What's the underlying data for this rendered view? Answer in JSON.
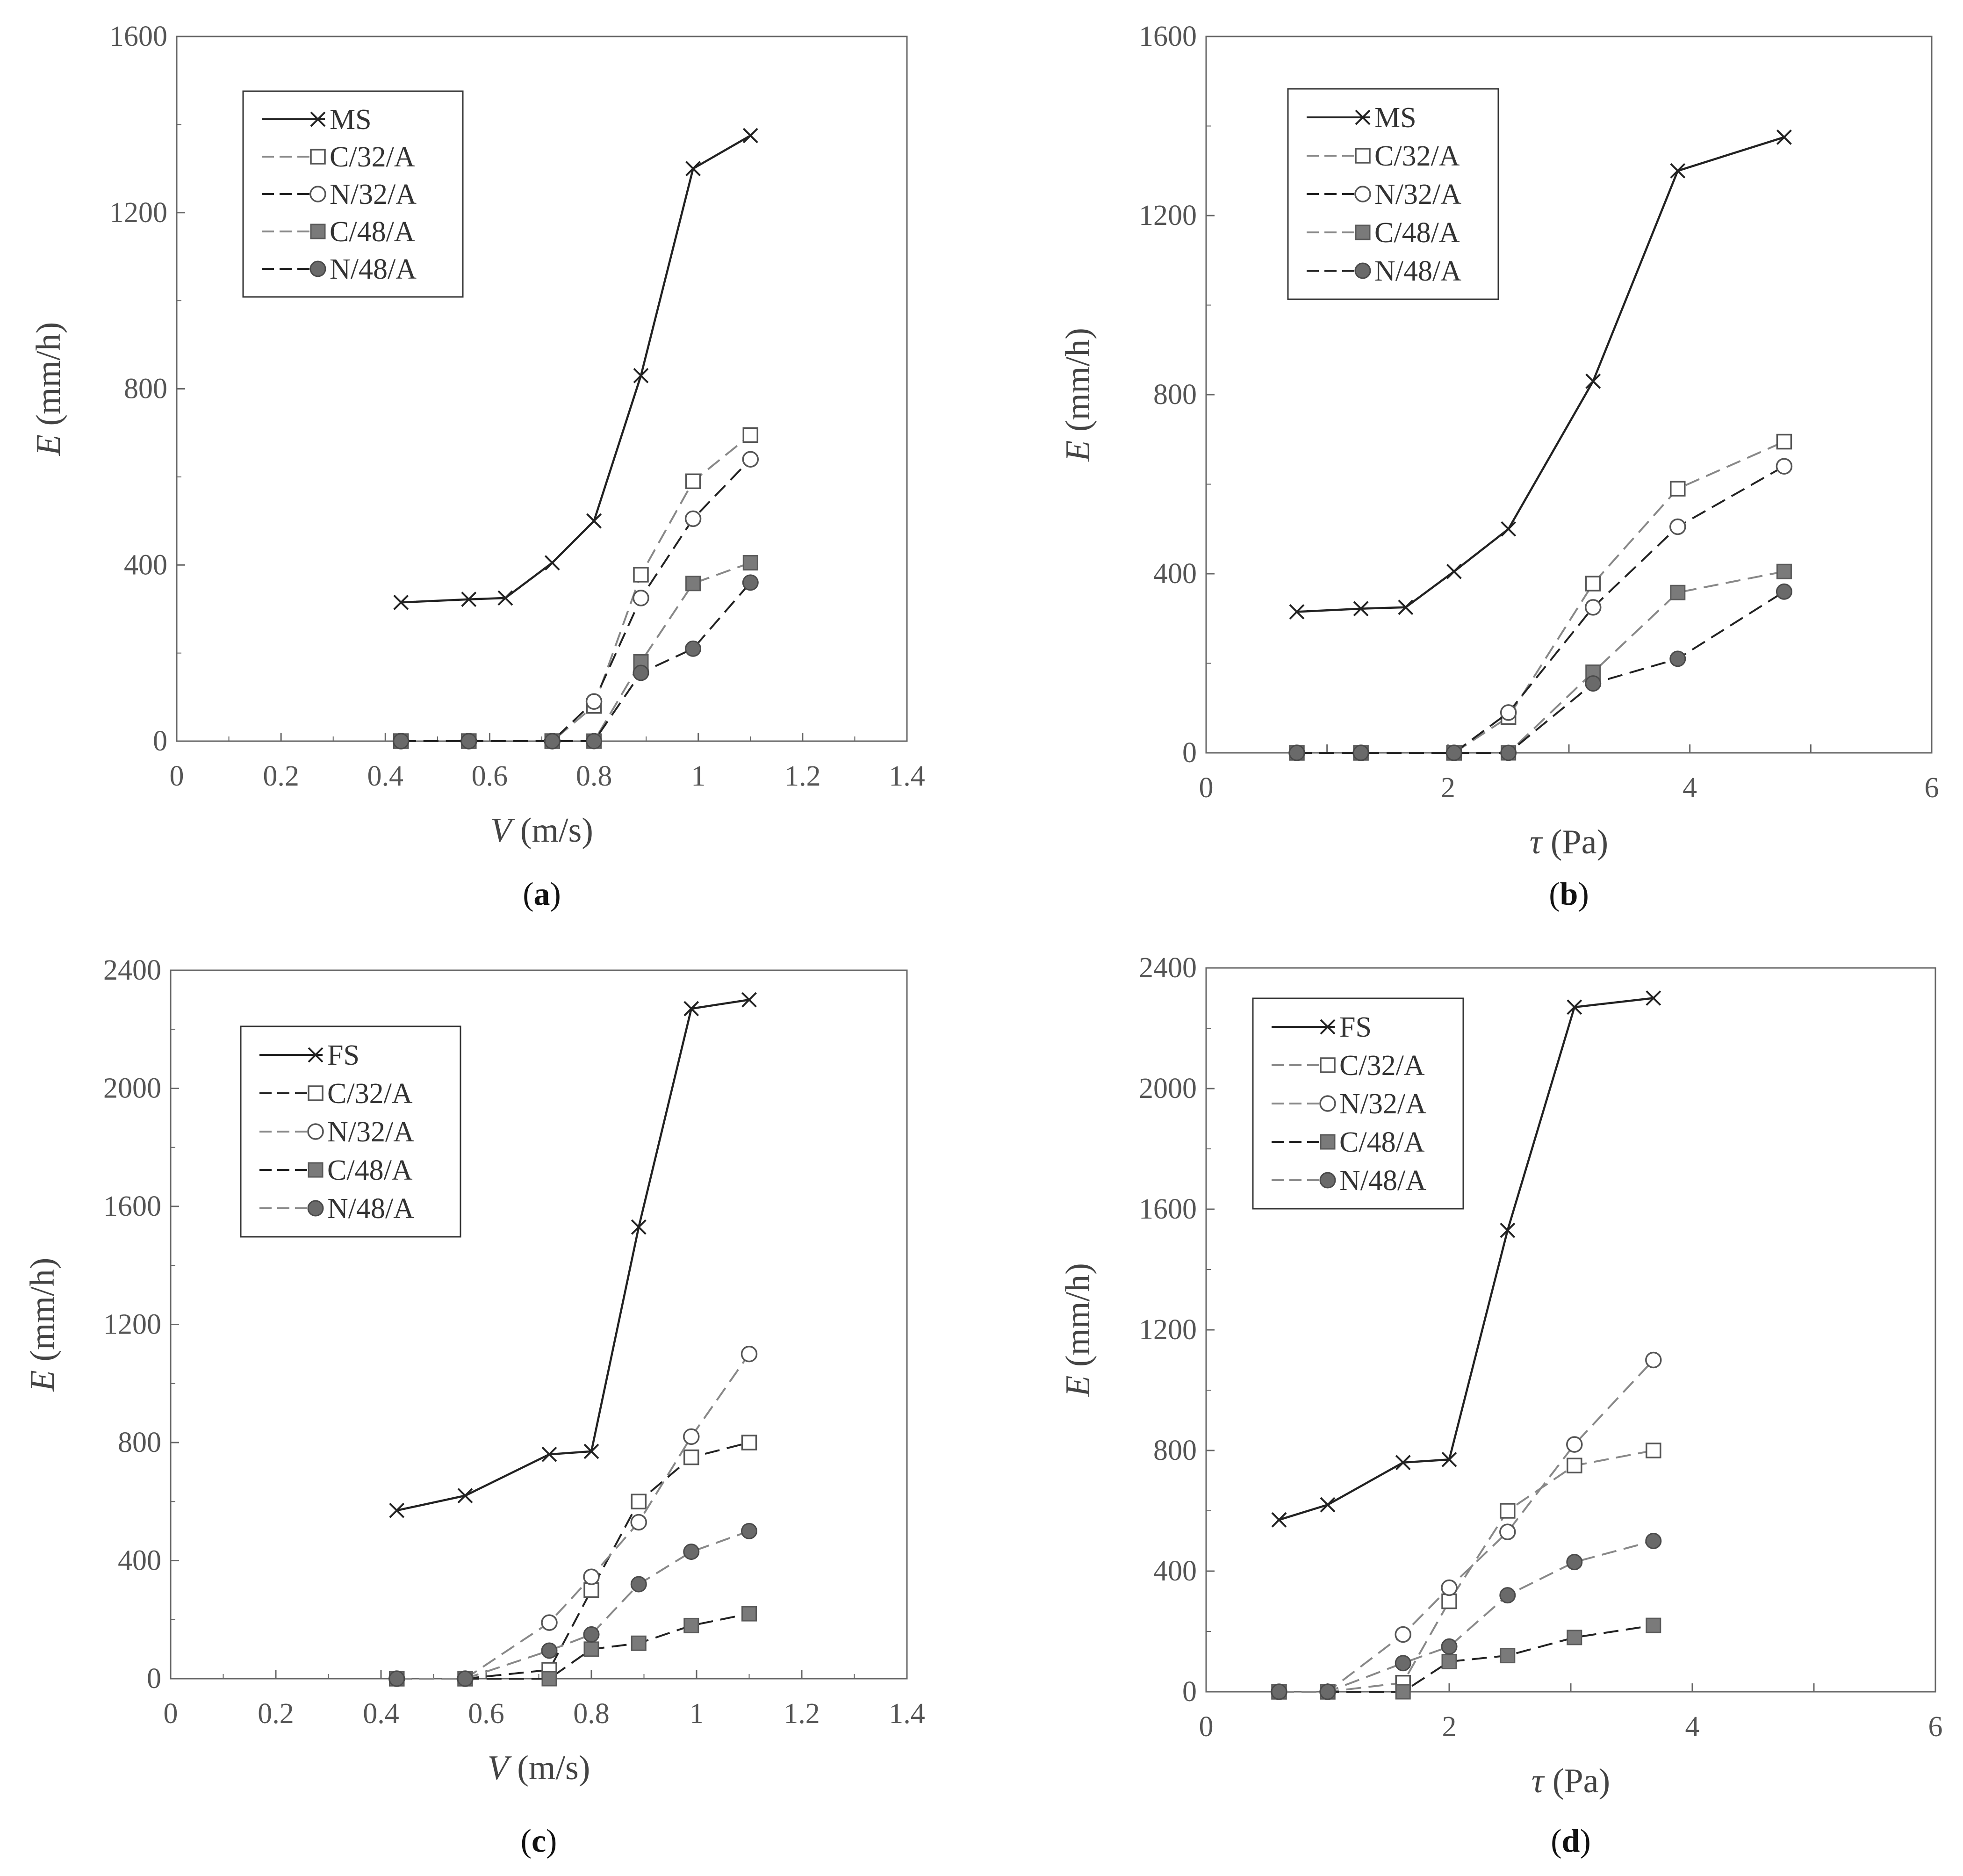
{
  "chart_data": [
    {
      "type": "line",
      "panel_label": "a",
      "xlabel_var": "V",
      "xlabel_unit": " (m/s)",
      "ylabel_var": "E",
      "ylabel_unit": " (mm/h)",
      "xlim": [
        0,
        1.4
      ],
      "ylim": [
        0,
        1600
      ],
      "xticks": [
        0,
        0.2,
        0.4,
        0.6,
        0.8,
        1.0,
        1.2,
        1.4
      ],
      "xtick_labels": [
        "0",
        "0.2",
        "0.4",
        "0.6",
        "0.8",
        "1",
        "1.2",
        "1.4"
      ],
      "yticks": [
        0,
        400,
        800,
        1200,
        1600
      ],
      "ytick_labels": [
        "0",
        "400",
        "800",
        "1200",
        "1600"
      ],
      "legend_position": "top-left",
      "series": [
        {
          "name": "MS",
          "marker": "x",
          "color": "#222222",
          "dashed": false,
          "x": [
            0.43,
            0.56,
            0.63,
            0.72,
            0.8,
            0.89,
            0.99,
            1.1
          ],
          "y": [
            315,
            322,
            325,
            405,
            500,
            830,
            1300,
            1375
          ]
        },
        {
          "name": "C/32/A",
          "marker": "square-open",
          "color": "#888888",
          "dashed": true,
          "x": [
            0.43,
            0.56,
            0.72,
            0.8,
            0.89,
            0.99,
            1.1
          ],
          "y": [
            0,
            0,
            0,
            80,
            378,
            590,
            695
          ]
        },
        {
          "name": "N/32/A",
          "marker": "circle-open",
          "color": "#222222",
          "dashed": true,
          "x": [
            0.43,
            0.56,
            0.72,
            0.8,
            0.89,
            0.99,
            1.1
          ],
          "y": [
            0,
            0,
            0,
            90,
            325,
            505,
            640
          ]
        },
        {
          "name": "C/48/A",
          "marker": "square-filled",
          "color": "#888888",
          "dashed": true,
          "x": [
            0.43,
            0.56,
            0.72,
            0.8,
            0.89,
            0.99,
            1.1
          ],
          "y": [
            0,
            0,
            0,
            0,
            180,
            358,
            405
          ]
        },
        {
          "name": "N/48/A",
          "marker": "circle-filled",
          "color": "#222222",
          "dashed": true,
          "x": [
            0.43,
            0.56,
            0.72,
            0.8,
            0.89,
            0.99,
            1.1
          ],
          "y": [
            0,
            0,
            0,
            0,
            155,
            210,
            360
          ]
        }
      ]
    },
    {
      "type": "line",
      "panel_label": "b",
      "xlabel_var": "τ",
      "xlabel_unit": " (Pa)",
      "ylabel_var": "E",
      "ylabel_unit": " (mm/h)",
      "xlim": [
        0,
        6
      ],
      "ylim": [
        0,
        1600
      ],
      "xticks": [
        0,
        1,
        2,
        3,
        4,
        5,
        6
      ],
      "xtick_labels": [
        "0",
        "",
        "2",
        "",
        "4",
        "",
        "6"
      ],
      "yticks": [
        0,
        400,
        800,
        1200,
        1600
      ],
      "ytick_labels": [
        "0",
        "400",
        "800",
        "1200",
        "1600"
      ],
      "legend_position": "top-left",
      "series": [
        {
          "name": "MS",
          "marker": "x",
          "color": "#222222",
          "dashed": false,
          "x": [
            0.75,
            1.28,
            1.65,
            2.05,
            2.5,
            3.2,
            3.9,
            4.78
          ],
          "y": [
            315,
            322,
            325,
            405,
            500,
            830,
            1300,
            1375
          ]
        },
        {
          "name": "C/32/A",
          "marker": "square-open",
          "color": "#888888",
          "dashed": true,
          "x": [
            0.75,
            1.28,
            2.05,
            2.5,
            3.2,
            3.9,
            4.78
          ],
          "y": [
            0,
            0,
            0,
            80,
            378,
            590,
            695
          ]
        },
        {
          "name": "N/32/A",
          "marker": "circle-open",
          "color": "#222222",
          "dashed": true,
          "x": [
            0.75,
            1.28,
            2.05,
            2.5,
            3.2,
            3.9,
            4.78
          ],
          "y": [
            0,
            0,
            0,
            90,
            325,
            505,
            640
          ]
        },
        {
          "name": "C/48/A",
          "marker": "square-filled",
          "color": "#888888",
          "dashed": true,
          "x": [
            0.75,
            1.28,
            2.05,
            2.5,
            3.2,
            3.9,
            4.78
          ],
          "y": [
            0,
            0,
            0,
            0,
            180,
            358,
            405
          ]
        },
        {
          "name": "N/48/A",
          "marker": "circle-filled",
          "color": "#222222",
          "dashed": true,
          "x": [
            0.75,
            1.28,
            2.05,
            2.5,
            3.2,
            3.9,
            4.78
          ],
          "y": [
            0,
            0,
            0,
            0,
            155,
            210,
            360
          ]
        }
      ]
    },
    {
      "type": "line",
      "panel_label": "c",
      "xlabel_var": "V",
      "xlabel_unit": " (m/s)",
      "ylabel_var": "E",
      "ylabel_unit": " (mm/h)",
      "xlim": [
        0,
        1.4
      ],
      "ylim": [
        0,
        2400
      ],
      "xticks": [
        0,
        0.2,
        0.4,
        0.6,
        0.8,
        1.0,
        1.2,
        1.4
      ],
      "xtick_labels": [
        "0",
        "0.2",
        "0.4",
        "0.6",
        "0.8",
        "1",
        "1.2",
        "1.4"
      ],
      "yticks": [
        0,
        400,
        800,
        1200,
        1600,
        2000,
        2400
      ],
      "ytick_labels": [
        "0",
        "400",
        "800",
        "1200",
        "1600",
        "2000",
        "2400"
      ],
      "legend_position": "top-left",
      "series": [
        {
          "name": "FS",
          "marker": "x",
          "color": "#222222",
          "dashed": false,
          "x": [
            0.43,
            0.56,
            0.72,
            0.8,
            0.89,
            0.99,
            1.1
          ],
          "y": [
            570,
            620,
            760,
            770,
            1530,
            2270,
            2300
          ]
        },
        {
          "name": "C/32/A",
          "marker": "square-open",
          "color": "#222222",
          "dashed": true,
          "x": [
            0.43,
            0.56,
            0.72,
            0.8,
            0.89,
            0.99,
            1.1
          ],
          "y": [
            0,
            0,
            30,
            300,
            600,
            750,
            800
          ]
        },
        {
          "name": "N/32/A",
          "marker": "circle-open",
          "color": "#888888",
          "dashed": true,
          "x": [
            0.43,
            0.56,
            0.72,
            0.8,
            0.89,
            0.99,
            1.1
          ],
          "y": [
            0,
            0,
            190,
            345,
            530,
            820,
            1100
          ]
        },
        {
          "name": "C/48/A",
          "marker": "square-filled",
          "color": "#222222",
          "dashed": true,
          "x": [
            0.43,
            0.56,
            0.72,
            0.8,
            0.89,
            0.99,
            1.1
          ],
          "y": [
            0,
            0,
            0,
            100,
            120,
            180,
            220
          ]
        },
        {
          "name": "N/48/A",
          "marker": "circle-filled",
          "color": "#888888",
          "dashed": true,
          "x": [
            0.43,
            0.56,
            0.72,
            0.8,
            0.89,
            0.99,
            1.1
          ],
          "y": [
            0,
            0,
            95,
            150,
            320,
            430,
            500
          ]
        }
      ]
    },
    {
      "type": "line",
      "panel_label": "d",
      "xlabel_var": "τ",
      "xlabel_unit": " (Pa)",
      "ylabel_var": "E",
      "ylabel_unit": " (mm/h)",
      "xlim": [
        0,
        6
      ],
      "ylim": [
        0,
        2400
      ],
      "xticks": [
        0,
        1,
        2,
        3,
        4,
        5,
        6
      ],
      "xtick_labels": [
        "0",
        "",
        "2",
        "",
        "4",
        "",
        "6"
      ],
      "yticks": [
        0,
        400,
        800,
        1200,
        1600,
        2000,
        2400
      ],
      "ytick_labels": [
        "0",
        "400",
        "800",
        "1200",
        "1600",
        "2000",
        "2400"
      ],
      "legend_position": "top-left",
      "series": [
        {
          "name": "FS",
          "marker": "x",
          "color": "#222222",
          "dashed": false,
          "x": [
            0.6,
            1.0,
            1.62,
            2.0,
            2.48,
            3.03,
            3.68
          ],
          "y": [
            570,
            620,
            760,
            770,
            1530,
            2270,
            2300
          ]
        },
        {
          "name": "C/32/A",
          "marker": "square-open",
          "color": "#888888",
          "dashed": true,
          "x": [
            0.6,
            1.0,
            1.62,
            2.0,
            2.48,
            3.03,
            3.68
          ],
          "y": [
            0,
            0,
            30,
            300,
            600,
            750,
            800
          ]
        },
        {
          "name": "N/32/A",
          "marker": "circle-open",
          "color": "#888888",
          "dashed": true,
          "x": [
            0.6,
            1.0,
            1.62,
            2.0,
            2.48,
            3.03,
            3.68
          ],
          "y": [
            0,
            0,
            190,
            345,
            530,
            820,
            1100
          ]
        },
        {
          "name": "C/48/A",
          "marker": "square-filled",
          "color": "#222222",
          "dashed": true,
          "x": [
            0.6,
            1.0,
            1.62,
            2.0,
            2.48,
            3.03,
            3.68
          ],
          "y": [
            0,
            0,
            0,
            100,
            120,
            180,
            220
          ]
        },
        {
          "name": "N/48/A",
          "marker": "circle-filled",
          "color": "#888888",
          "dashed": true,
          "x": [
            0.6,
            1.0,
            1.62,
            2.0,
            2.48,
            3.03,
            3.68
          ],
          "y": [
            0,
            0,
            95,
            150,
            320,
            430,
            500
          ]
        }
      ]
    }
  ]
}
